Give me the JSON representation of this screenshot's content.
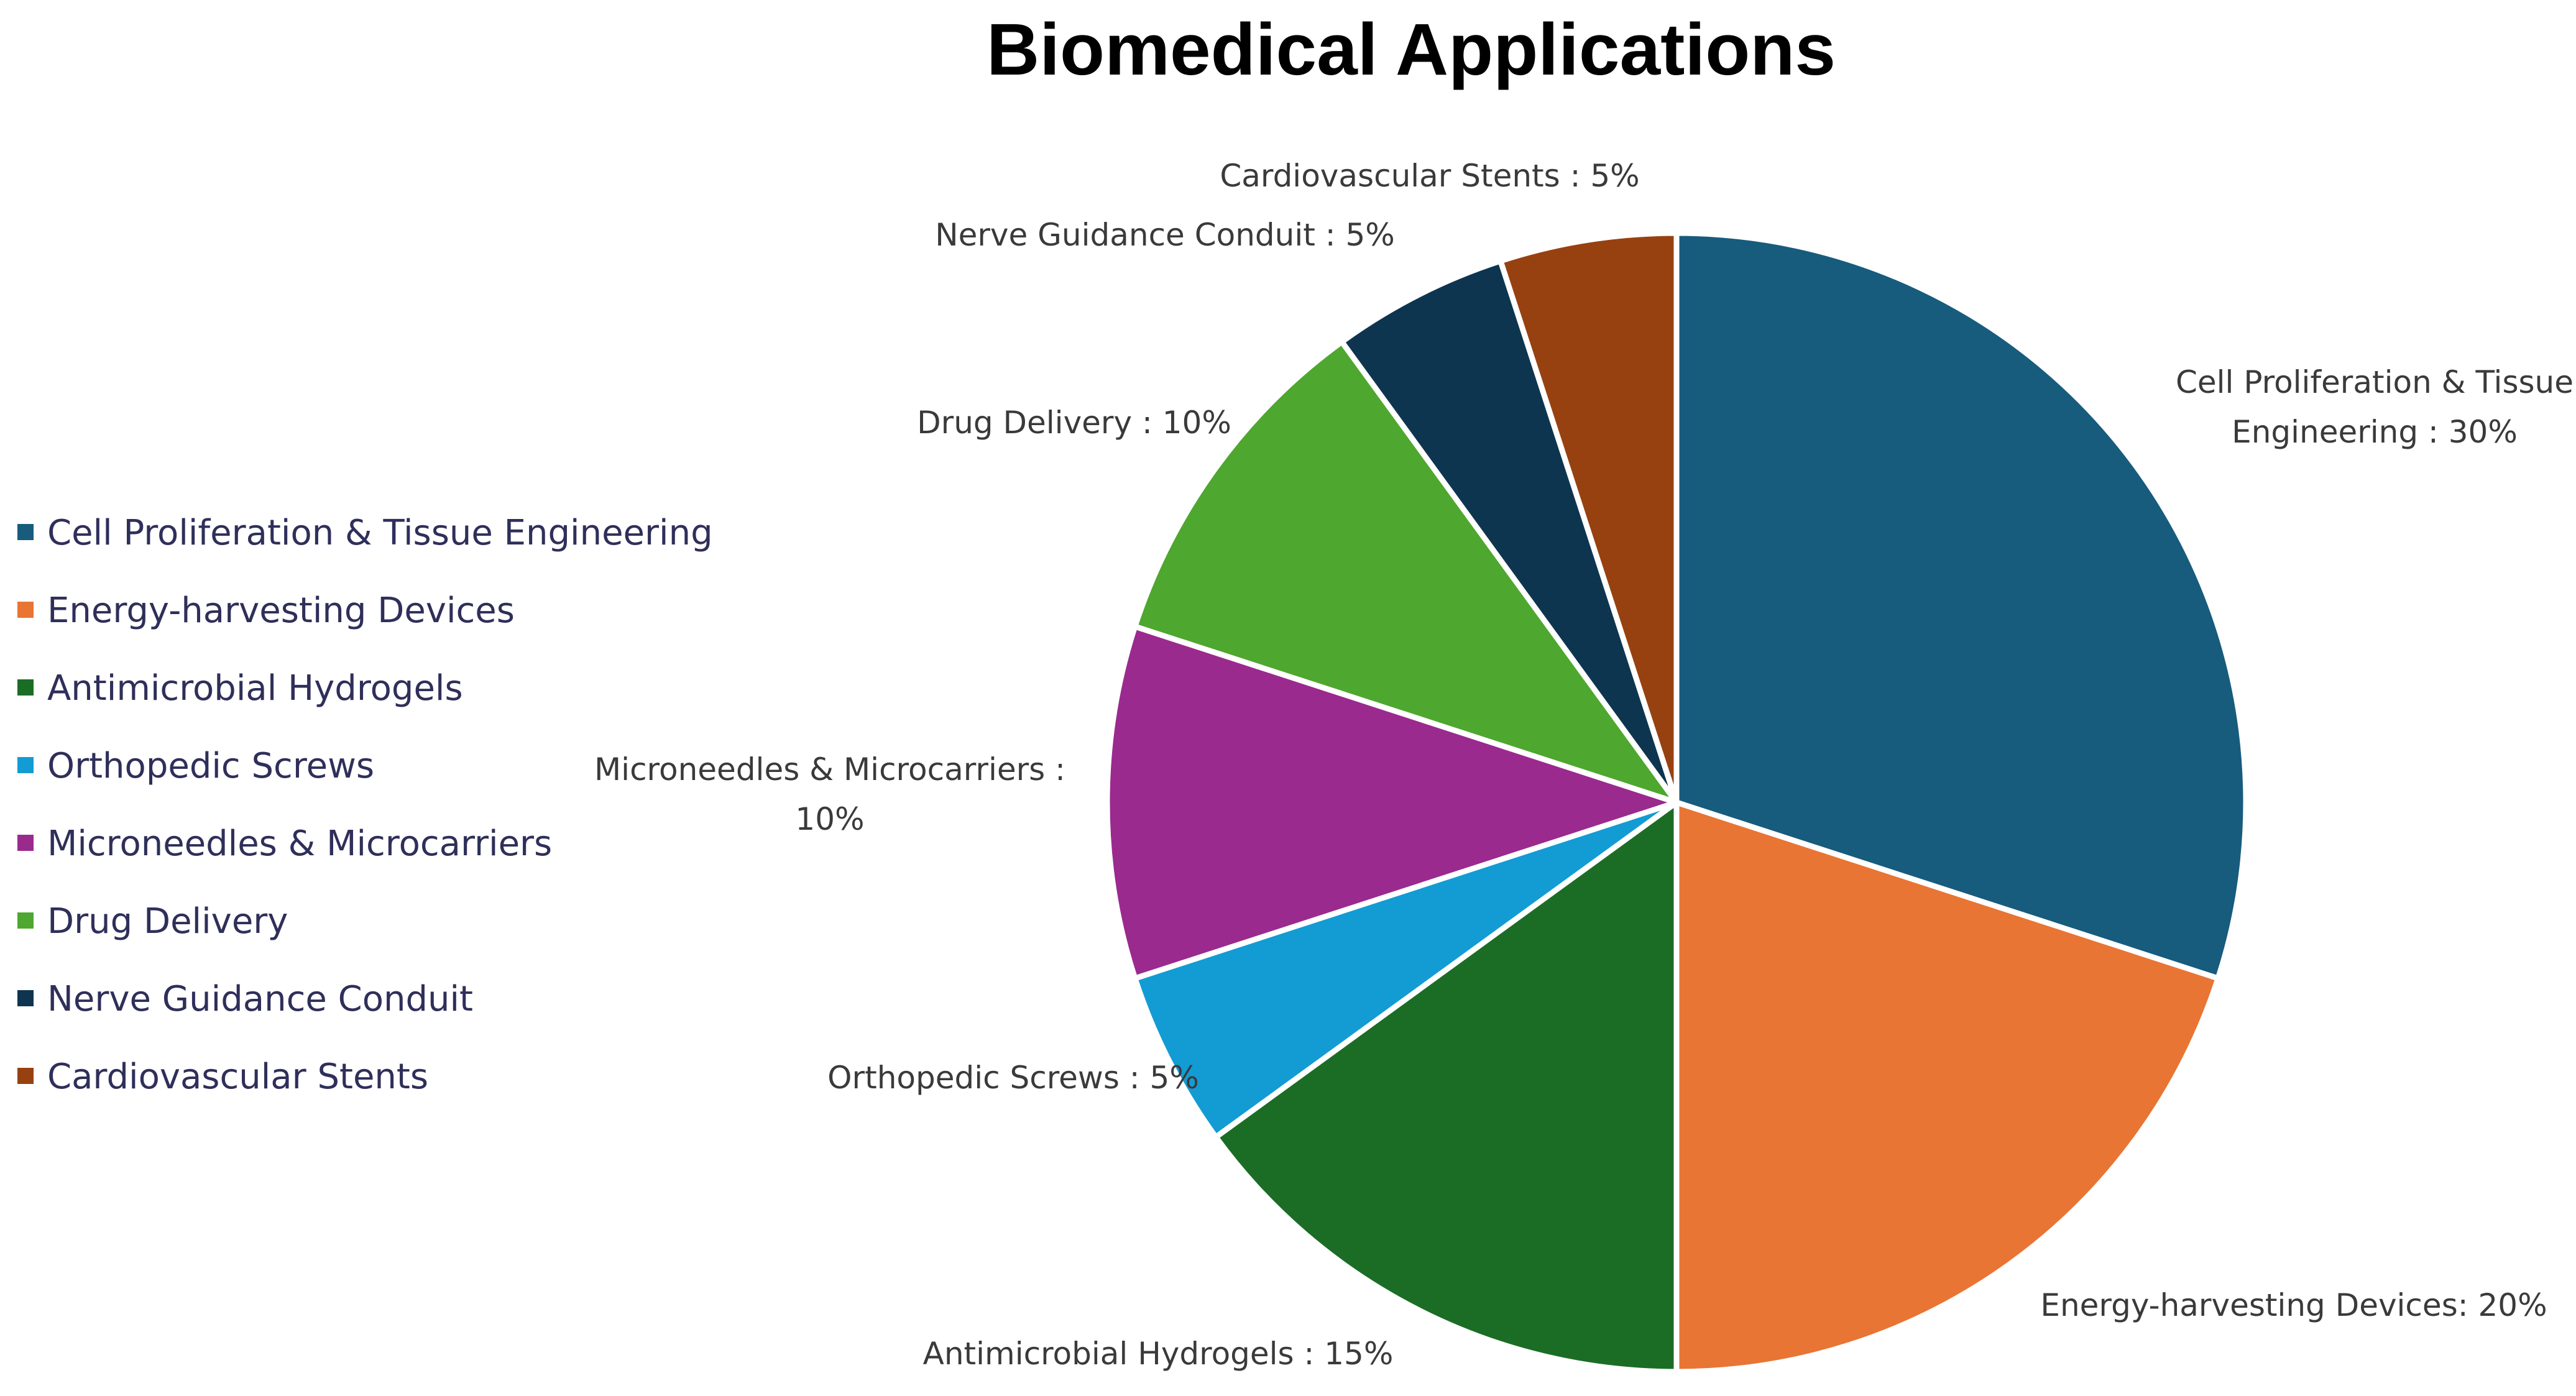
{
  "chart_data": {
    "type": "pie",
    "title": "Biomedical Applications",
    "start_angle_deg": 0,
    "direction": "clockwise",
    "legend_position": "left",
    "slices": [
      {
        "name": "Cell Proliferation & Tissue Engineering",
        "value": 30,
        "color": "#175b7d",
        "label_lines": [
          "Cell Proliferation & Tissue",
          "Engineering : 30%"
        ]
      },
      {
        "name": "Energy-harvesting Devices",
        "value": 20,
        "color": "#e87533",
        "label_lines": [
          "Energy-harvesting Devices: 20%"
        ]
      },
      {
        "name": "Antimicrobial Hydrogels",
        "value": 15,
        "color": "#1b6d25",
        "label_lines": [
          "Antimicrobial Hydrogels : 15%"
        ]
      },
      {
        "name": "Orthopedic Screws",
        "value": 5,
        "color": "#139bd4",
        "label_lines": [
          "Orthopedic Screws : 5%"
        ]
      },
      {
        "name": "Microneedles & Microcarriers",
        "value": 10,
        "color": "#9a2a8e",
        "label_lines": [
          "Microneedles & Microcarriers :",
          "10%"
        ]
      },
      {
        "name": "Drug Delivery",
        "value": 10,
        "color": "#4ea72e",
        "label_lines": [
          "Drug Delivery : 10%"
        ]
      },
      {
        "name": "Nerve Guidance Conduit",
        "value": 5,
        "color": "#0e3550",
        "label_lines": [
          "Nerve Guidance Conduit : 5%"
        ]
      },
      {
        "name": "Cardiovascular Stents",
        "value": 5,
        "color": "#974111",
        "label_lines": [
          "Cardiovascular Stents : 5%"
        ]
      }
    ]
  }
}
